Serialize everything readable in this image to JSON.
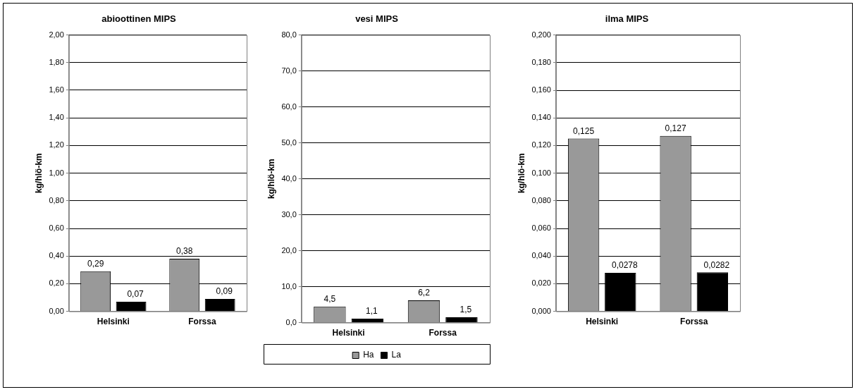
{
  "chart_data": [
    {
      "type": "bar",
      "title": "abioottinen MIPS",
      "ylabel": "kg/hlö-km",
      "categories": [
        "Helsinki",
        "Forssa"
      ],
      "series": [
        {
          "color": "#999999",
          "values": [
            0.29,
            0.38
          ],
          "value_labels": [
            "0,29",
            "0,38"
          ]
        },
        {
          "color": "#000000",
          "values": [
            0.07,
            0.09
          ],
          "value_labels": [
            "0,07",
            "0,09"
          ]
        }
      ],
      "ylim": [
        0,
        2
      ],
      "yticks": [
        {
          "value": 0,
          "label": "0,00"
        },
        {
          "value": 0.2,
          "label": "0,20"
        },
        {
          "value": 0.4,
          "label": "0,40"
        },
        {
          "value": 0.6,
          "label": "0,60"
        },
        {
          "value": 0.8,
          "label": "0,80"
        },
        {
          "value": 1,
          "label": "1,00"
        },
        {
          "value": 1.2,
          "label": "1,20"
        },
        {
          "value": 1.4,
          "label": "1,40"
        },
        {
          "value": 1.6,
          "label": "1,60"
        },
        {
          "value": 1.8,
          "label": "1,80"
        },
        {
          "value": 2,
          "label": "2,00"
        }
      ],
      "grid": "y"
    },
    {
      "type": "bar",
      "title": "vesi MIPS",
      "ylabel": "kg/hlö-km",
      "categories": [
        "Helsinki",
        "Forssa"
      ],
      "series": [
        {
          "name": "Ha",
          "color": "#999999",
          "values": [
            4.5,
            6.2
          ],
          "value_labels": [
            "4,5",
            "6,2"
          ]
        },
        {
          "name": "La",
          "color": "#000000",
          "values": [
            1.1,
            1.5
          ],
          "value_labels": [
            "1,1",
            "1,5"
          ]
        }
      ],
      "ylim": [
        0,
        80
      ],
      "yticks": [
        {
          "value": 0,
          "label": "0,0"
        },
        {
          "value": 10,
          "label": "10,0"
        },
        {
          "value": 20,
          "label": "20,0"
        },
        {
          "value": 30,
          "label": "30,0"
        },
        {
          "value": 40,
          "label": "40,0"
        },
        {
          "value": 50,
          "label": "50,0"
        },
        {
          "value": 60,
          "label": "60,0"
        },
        {
          "value": 70,
          "label": "70,0"
        },
        {
          "value": 80,
          "label": "80,0"
        }
      ],
      "grid": "y",
      "legend": "bottom"
    },
    {
      "type": "bar",
      "title": "ilma MIPS",
      "ylabel": "kg/hlö-km",
      "categories": [
        "Helsinki",
        "Forssa"
      ],
      "series": [
        {
          "color": "#999999",
          "values": [
            0.125,
            0.127
          ],
          "value_labels": [
            "0,125",
            "0,127"
          ]
        },
        {
          "color": "#000000",
          "values": [
            0.0278,
            0.0282
          ],
          "value_labels": [
            "0,0278",
            "0,0282"
          ]
        }
      ],
      "ylim": [
        0,
        0.2
      ],
      "yticks": [
        {
          "value": 0,
          "label": "0,000"
        },
        {
          "value": 0.02,
          "label": "0,020"
        },
        {
          "value": 0.04,
          "label": "0,040"
        },
        {
          "value": 0.06,
          "label": "0,060"
        },
        {
          "value": 0.08,
          "label": "0,080"
        },
        {
          "value": 0.1,
          "label": "0,100"
        },
        {
          "value": 0.12,
          "label": "0,120"
        },
        {
          "value": 0.14,
          "label": "0,140"
        },
        {
          "value": 0.16,
          "label": "0,160"
        },
        {
          "value": 0.18,
          "label": "0,180"
        },
        {
          "value": 0.2,
          "label": "0,200"
        }
      ],
      "grid": "y"
    }
  ]
}
